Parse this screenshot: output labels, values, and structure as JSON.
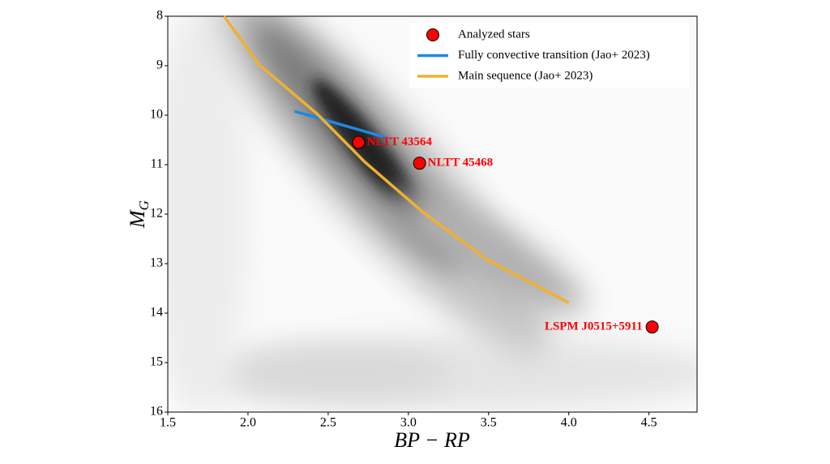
{
  "chart_data": {
    "type": "scatter",
    "x_label": "BP − RP",
    "y_label": "M",
    "y_label_subscript": "G",
    "xlim": [
      1.5,
      4.8
    ],
    "ylim": [
      8,
      16
    ],
    "y_inverted": true,
    "xticks": [
      1.5,
      {
        "value": 2,
        "label": "2.0"
      },
      2.5,
      {
        "value": 3,
        "label": "3.0"
      },
      3.5,
      {
        "value": 4,
        "label": "4.0"
      },
      4.5
    ],
    "yticks": [
      8,
      9,
      10,
      11,
      12,
      13,
      14,
      15,
      16
    ],
    "legend": "upper right",
    "series": [
      {
        "name": "Analyzed stars",
        "kind": "scatter",
        "color": "#ff0000",
        "x": [
          2.69,
          3.07,
          4.52
        ],
        "values": [
          10.55,
          10.97,
          14.28
        ],
        "labels": [
          "NLTT 43564",
          "NLTT 45468",
          "LSPM J0515+5911"
        ]
      },
      {
        "name": "Fully convective transition (Jao+ 2023)",
        "kind": "line",
        "color": "#1e88e5",
        "x": [
          2.29,
          2.87
        ],
        "values": [
          9.92,
          10.46
        ]
      },
      {
        "name": "Main sequence (Jao+ 2023)",
        "kind": "line",
        "color": "#f0b030",
        "x": [
          1.85,
          2.07,
          2.43,
          2.73,
          3.08,
          3.49,
          4.0
        ],
        "values": [
          8.0,
          8.98,
          9.97,
          10.95,
          11.93,
          12.92,
          13.79
        ]
      }
    ]
  }
}
